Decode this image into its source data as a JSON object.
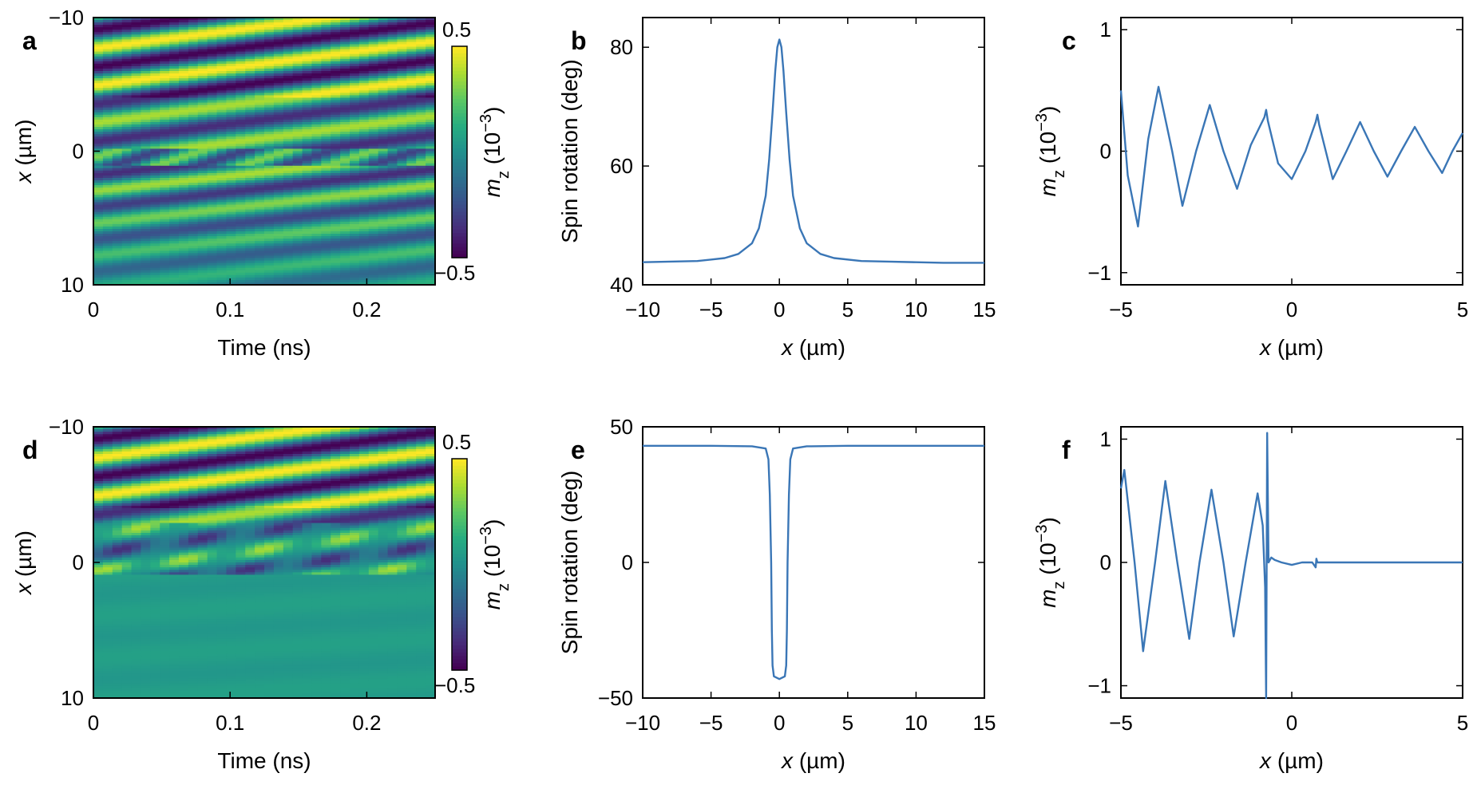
{
  "chart_data": [
    {
      "id": "a",
      "type": "heatmap",
      "panel_label": "a",
      "xlabel": "Time (ns)",
      "ylabel_var": "x",
      "ylabel_unit": " (µm)",
      "xlim": [
        0,
        0.25
      ],
      "ylim": [
        -10,
        10
      ],
      "xticks": [
        "0",
        "0.1",
        "0.2"
      ],
      "xtick_values": [
        0,
        0.1,
        0.2
      ],
      "yticks": [
        "−10",
        "0",
        "10"
      ],
      "ytick_values": [
        -10,
        0,
        10
      ],
      "colorbar": {
        "label_var": "m",
        "label_sub": "z",
        "label_unit": " (10",
        "label_exp": "−3",
        "label_close": ")",
        "max_label": "0.5",
        "min_label": "−0.5",
        "range": [
          -0.5,
          0.5
        ]
      },
      "pattern": "wave_full"
    },
    {
      "id": "b",
      "type": "line",
      "panel_label": "b",
      "xlabel_var": "x",
      "xlabel_unit": " (µm)",
      "ylabel": "Spin rotation (deg)",
      "xlim": [
        -10,
        15
      ],
      "ylim": [
        40,
        85
      ],
      "xticks": [
        "−10",
        "−5",
        "0",
        "5",
        "10",
        "15"
      ],
      "xtick_values": [
        -10,
        -5,
        0,
        5,
        10,
        15
      ],
      "yticks": [
        "40",
        "60",
        "80"
      ],
      "ytick_values": [
        40,
        60,
        80
      ],
      "series": [
        {
          "name": "spin rotation",
          "color": "#3a76b6",
          "x": [
            -10,
            -8,
            -6,
            -4,
            -3,
            -2,
            -1.5,
            -1,
            -0.75,
            -0.5,
            -0.3,
            -0.15,
            0,
            0.15,
            0.3,
            0.5,
            0.75,
            1,
            1.5,
            2,
            3,
            4,
            6,
            8,
            10,
            12,
            15
          ],
          "y": [
            43.8,
            43.9,
            44.0,
            44.5,
            45.2,
            47.0,
            49.5,
            55.0,
            61.0,
            69.0,
            76.0,
            80.0,
            81.3,
            80.0,
            76.0,
            69.0,
            61.0,
            55.0,
            49.5,
            47.0,
            45.2,
            44.5,
            44.0,
            43.9,
            43.8,
            43.7,
            43.7
          ]
        }
      ]
    },
    {
      "id": "c",
      "type": "line",
      "panel_label": "c",
      "xlabel_var": "x",
      "xlabel_unit": " (µm)",
      "ylabel_var": "m",
      "ylabel_sub": "z",
      "ylabel_unit": " (10",
      "ylabel_exp": "−3",
      "ylabel_close": ")",
      "xlim": [
        -5,
        5
      ],
      "ylim": [
        -1.1,
        1.1
      ],
      "xticks": [
        "−5",
        "0",
        "5"
      ],
      "xtick_values": [
        -5,
        0,
        5
      ],
      "yticks": [
        "1",
        "0",
        "−1"
      ],
      "ytick_values": [
        1,
        0,
        -1
      ],
      "series": [
        {
          "name": "mz",
          "color": "#3a76b6",
          "x": [
            -5.0,
            -4.8,
            -4.5,
            -4.2,
            -3.9,
            -3.5,
            -3.2,
            -2.8,
            -2.4,
            -2.0,
            -1.6,
            -1.2,
            -0.8,
            -0.75,
            -0.7,
            -0.4,
            0.0,
            0.4,
            0.7,
            0.75,
            0.8,
            1.2,
            1.6,
            2.0,
            2.4,
            2.8,
            3.2,
            3.6,
            4.0,
            4.4,
            4.7,
            5.0
          ],
          "y": [
            0.5,
            -0.2,
            -0.62,
            0.1,
            0.53,
            0.0,
            -0.45,
            0.0,
            0.38,
            0.0,
            -0.31,
            0.05,
            0.28,
            0.34,
            0.25,
            -0.1,
            -0.23,
            0.0,
            0.24,
            0.3,
            0.22,
            -0.23,
            0.0,
            0.24,
            0.0,
            -0.21,
            0.0,
            0.2,
            0.0,
            -0.18,
            0.0,
            0.15
          ]
        }
      ]
    },
    {
      "id": "d",
      "type": "heatmap",
      "panel_label": "d",
      "xlabel": "Time (ns)",
      "ylabel_var": "x",
      "ylabel_unit": " (µm)",
      "xlim": [
        0,
        0.25
      ],
      "ylim": [
        -10,
        10
      ],
      "xticks": [
        "0",
        "0.1",
        "0.2"
      ],
      "xtick_values": [
        0,
        0.1,
        0.2
      ],
      "yticks": [
        "−10",
        "0",
        "10"
      ],
      "ytick_values": [
        -10,
        0,
        10
      ],
      "colorbar": {
        "label_var": "m",
        "label_sub": "z",
        "label_unit": " (10",
        "label_exp": "−3",
        "label_close": ")",
        "max_label": "0.5",
        "min_label": "−0.5",
        "range": [
          -0.5,
          0.5
        ]
      },
      "pattern": "wave_upper_half"
    },
    {
      "id": "e",
      "type": "line",
      "panel_label": "e",
      "xlabel_var": "x",
      "xlabel_unit": " (µm)",
      "ylabel": "Spin rotation (deg)",
      "xlim": [
        -10,
        15
      ],
      "ylim": [
        -50,
        50
      ],
      "xticks": [
        "−10",
        "−5",
        "0",
        "5",
        "10",
        "15"
      ],
      "xtick_values": [
        -10,
        -5,
        0,
        5,
        10,
        15
      ],
      "yticks": [
        "50",
        "0",
        "−50"
      ],
      "ytick_values": [
        50,
        0,
        -50
      ],
      "series": [
        {
          "name": "spin rotation",
          "color": "#3a76b6",
          "x": [
            -10,
            -5,
            -2,
            -1,
            -0.8,
            -0.7,
            -0.6,
            -0.55,
            -0.5,
            -0.4,
            0,
            0.4,
            0.5,
            0.55,
            0.6,
            0.7,
            0.8,
            1,
            2,
            5,
            10,
            15
          ],
          "y": [
            43,
            43,
            42.8,
            42,
            38,
            25,
            0,
            -25,
            -38,
            -42,
            -43,
            -42,
            -38,
            -25,
            0,
            25,
            38,
            42,
            42.8,
            43,
            43,
            43
          ]
        }
      ]
    },
    {
      "id": "f",
      "type": "line",
      "panel_label": "f",
      "xlabel_var": "x",
      "xlabel_unit": " (µm)",
      "ylabel_var": "m",
      "ylabel_sub": "z",
      "ylabel_unit": " (10",
      "ylabel_exp": "−3",
      "ylabel_close": ")",
      "xlim": [
        -5,
        5
      ],
      "ylim": [
        -1.1,
        1.1
      ],
      "xticks": [
        "−5",
        "0",
        "5"
      ],
      "xtick_values": [
        -5,
        0,
        5
      ],
      "yticks": [
        "1",
        "0",
        "−1"
      ],
      "ytick_values": [
        1,
        0,
        -1
      ],
      "series": [
        {
          "name": "mz",
          "color": "#3a76b6",
          "x": [
            -5.0,
            -4.9,
            -4.6,
            -4.35,
            -4.0,
            -3.7,
            -3.35,
            -3.0,
            -2.7,
            -2.35,
            -2.0,
            -1.7,
            -1.35,
            -1.0,
            -0.85,
            -0.78,
            -0.75,
            -0.72,
            -0.68,
            -0.6,
            -0.5,
            -0.3,
            0.0,
            0.3,
            0.6,
            0.7,
            0.72,
            0.75,
            1.0,
            2.0,
            3.0,
            4.0,
            5.0
          ],
          "y": [
            0.6,
            0.75,
            0.0,
            -0.72,
            0.0,
            0.66,
            0.0,
            -0.62,
            0.0,
            0.59,
            0.0,
            -0.6,
            0.0,
            0.56,
            0.3,
            -0.2,
            -1.1,
            1.05,
            0.0,
            0.04,
            0.02,
            0.0,
            -0.02,
            0.0,
            0.0,
            -0.04,
            0.03,
            0.0,
            0.0,
            0.0,
            0.0,
            0.0,
            0.0
          ]
        }
      ]
    }
  ]
}
